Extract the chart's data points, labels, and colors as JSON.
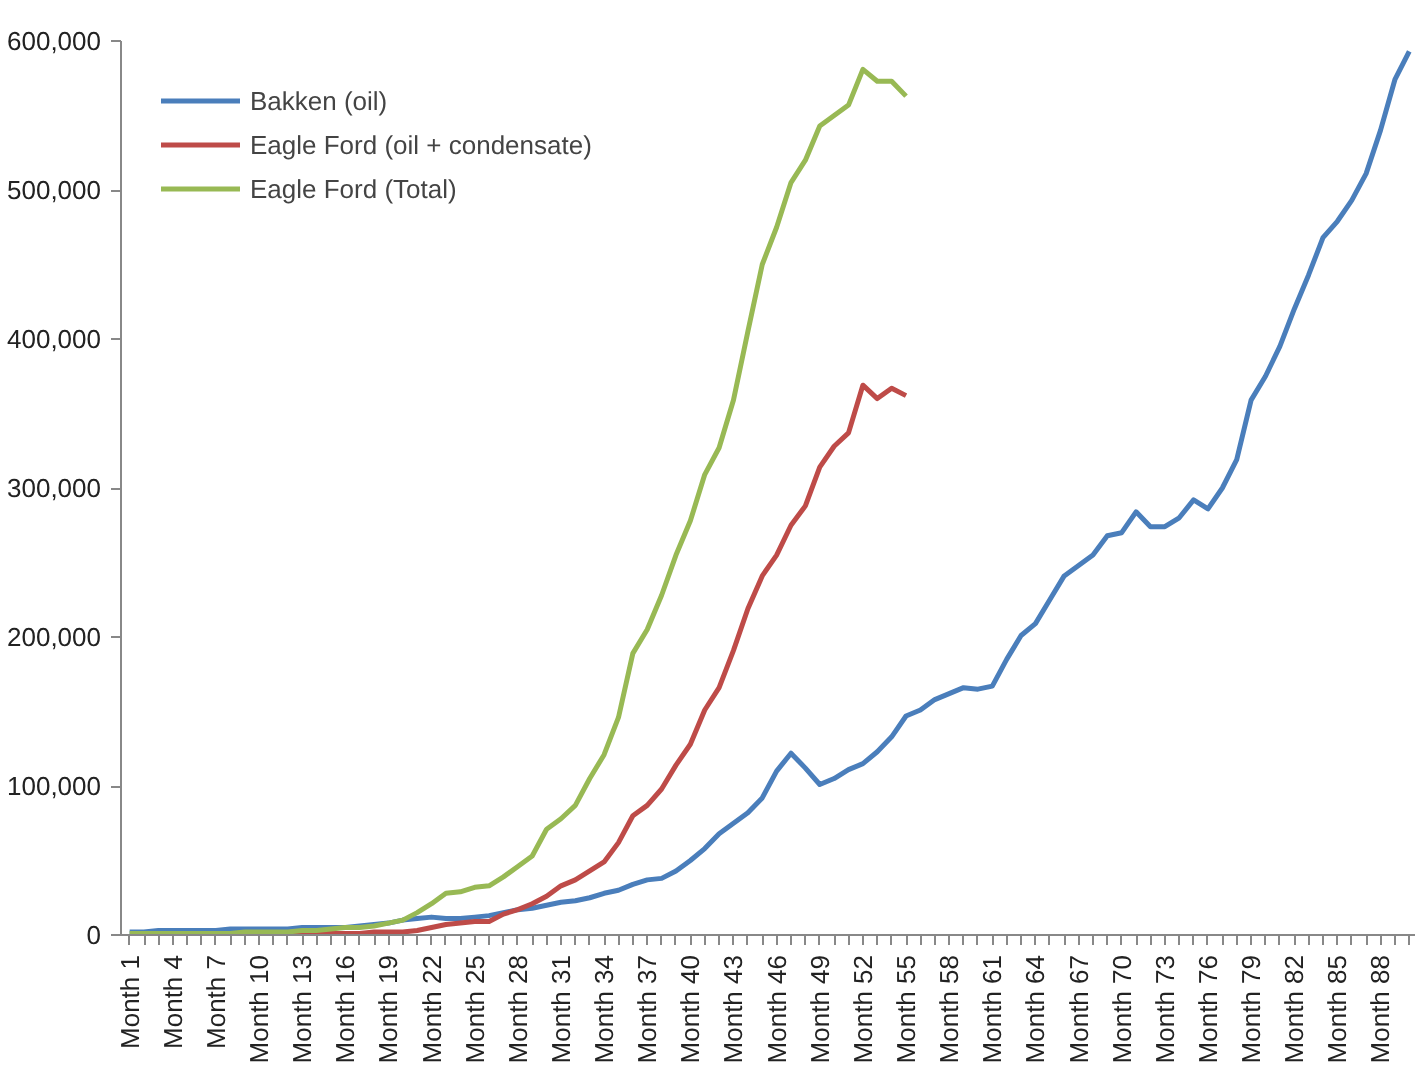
{
  "chart_data": {
    "type": "line",
    "categories": [
      "Month 1",
      null,
      null,
      "Month 4",
      null,
      null,
      "Month 7",
      null,
      null,
      "Month 10",
      null,
      null,
      "Month 13",
      null,
      null,
      "Month 16",
      null,
      null,
      "Month 19",
      null,
      null,
      "Month 22",
      null,
      null,
      "Month 25",
      null,
      null,
      "Month 28",
      null,
      null,
      "Month 31",
      null,
      null,
      "Month 34",
      null,
      null,
      "Month 37",
      null,
      null,
      "Month 40",
      null,
      null,
      "Month 43",
      null,
      null,
      "Month 46",
      null,
      null,
      "Month 49",
      null,
      null,
      "Month 52",
      null,
      null,
      "Month 55",
      null,
      null,
      "Month 58",
      null,
      null,
      "Month 61",
      null,
      null,
      "Month 64",
      null,
      null,
      "Month 67",
      null,
      null,
      "Month 70",
      null,
      null,
      "Month 73",
      null,
      null,
      "Month 76",
      null,
      null,
      "Month 79",
      null,
      null,
      "Month 82",
      null,
      null,
      "Month 85",
      null,
      null,
      "Month 88",
      null,
      null
    ],
    "ylim": [
      0,
      600000
    ],
    "yticks": [
      0,
      {
        "value": 100000,
        "label": "100,000"
      },
      {
        "value": 200000,
        "label": "200,000"
      },
      {
        "value": 300000,
        "label": "300,000"
      },
      {
        "value": 400000,
        "label": "400,000"
      },
      {
        "value": 500000,
        "label": "500,000"
      },
      {
        "value": 600000,
        "label": "600,000"
      }
    ],
    "grid": false,
    "legend": "top left",
    "line_style": "solid",
    "marker": "none",
    "series": [
      {
        "name": "Bakken (oil)",
        "color": "#4a7ebb",
        "values": [
          2000,
          2000,
          3000,
          3000,
          3000,
          3000,
          3000,
          4000,
          4000,
          4000,
          4000,
          4000,
          5000,
          5000,
          5000,
          5000,
          6000,
          7000,
          8000,
          10000,
          11000,
          12000,
          11000,
          11000,
          12000,
          13000,
          15000,
          17000,
          18000,
          20000,
          22000,
          23000,
          25000,
          28000,
          30000,
          34000,
          37000,
          38000,
          43000,
          50000,
          58000,
          68000,
          75000,
          82000,
          92000,
          110000,
          122000,
          112000,
          101000,
          105000,
          111000,
          115000,
          123000,
          133000,
          147000,
          151000,
          158000,
          162000,
          166000,
          165000,
          167000,
          185000,
          201000,
          209000,
          225000,
          241000,
          248000,
          255000,
          268000,
          270000,
          284000,
          274000,
          274000,
          280000,
          292000,
          286000,
          300000,
          319000,
          359000,
          375000,
          395000,
          420000,
          443000,
          468000,
          479000,
          493000,
          511000,
          540000,
          574000,
          593000
        ]
      },
      {
        "name": "Eagle Ford (oil + condensate)",
        "color": "#be4b48",
        "values": [
          null,
          null,
          null,
          null,
          null,
          null,
          null,
          null,
          null,
          null,
          0,
          0,
          0,
          1000,
          1000,
          1000,
          1000,
          2000,
          2000,
          2000,
          3000,
          5000,
          7000,
          8000,
          9000,
          9000,
          14000,
          17000,
          21000,
          26000,
          33000,
          37000,
          43000,
          49000,
          62000,
          80000,
          87000,
          98000,
          114000,
          128000,
          151000,
          166000,
          191000,
          219000,
          241000,
          255000,
          275000,
          288000,
          314000,
          328000,
          337000,
          369000,
          360000,
          367000,
          362000,
          null,
          null,
          null,
          null,
          null,
          null,
          null,
          null,
          null,
          null,
          null,
          null,
          null,
          null,
          null,
          null,
          null,
          null,
          null,
          null,
          null,
          null,
          null,
          null,
          null,
          null,
          null,
          null,
          null,
          null,
          null,
          null,
          null,
          null,
          null
        ]
      },
      {
        "name": "Eagle Ford (Total)",
        "color": "#98b954",
        "values": [
          1000,
          1000,
          1000,
          1000,
          1000,
          1000,
          1000,
          1000,
          2000,
          2000,
          2000,
          2000,
          3000,
          3000,
          4000,
          5000,
          5000,
          6000,
          8000,
          10000,
          15000,
          21000,
          28000,
          29000,
          32000,
          33000,
          39000,
          46000,
          53000,
          71000,
          78000,
          87000,
          105000,
          121000,
          146000,
          189000,
          205000,
          228000,
          255000,
          278000,
          309000,
          327000,
          359000,
          405000,
          450000,
          475000,
          505000,
          520000,
          543000,
          550000,
          557000,
          581000,
          573000,
          573000,
          563000,
          null,
          null,
          null,
          null,
          null,
          null,
          null,
          null,
          null,
          null,
          null,
          null,
          null,
          null,
          null,
          null,
          null,
          null,
          null,
          null,
          null,
          null,
          null,
          null,
          null,
          null,
          null,
          null,
          null,
          null,
          null,
          null,
          null,
          null,
          null
        ]
      }
    ]
  }
}
